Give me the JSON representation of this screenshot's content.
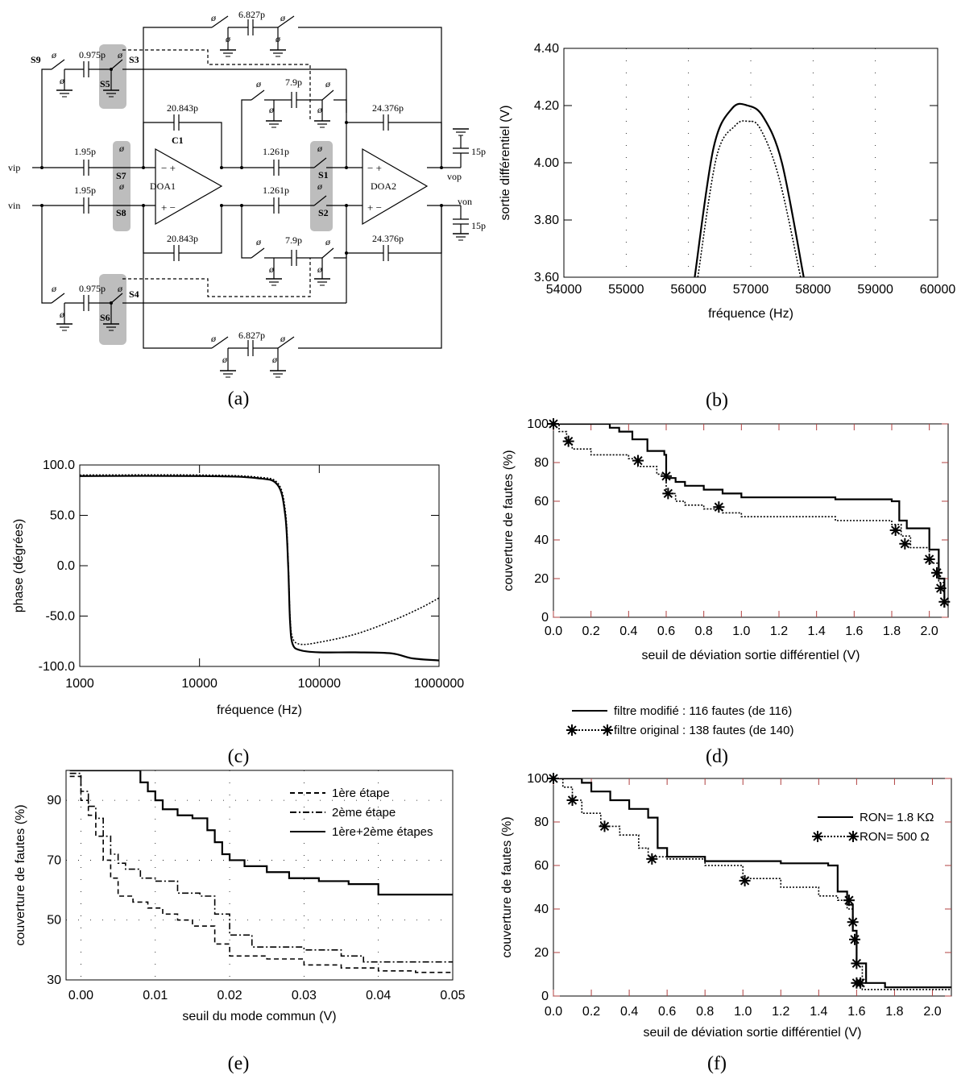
{
  "panel_labels": [
    "(a)",
    "(b)",
    "(c)",
    "(d)",
    "(e)",
    "(f)"
  ],
  "circuit": {
    "amp_labels": [
      "DOA1",
      "DOA2"
    ],
    "switch_labels": [
      "S1",
      "S2",
      "S3",
      "S4",
      "S5",
      "S6",
      "S7",
      "S8",
      "S9"
    ],
    "cap_labels": {
      "top_outer": "6.827p",
      "bottom_outer": "6.827p",
      "s9_cap": "0.975p",
      "s6_cap": "0.975p",
      "fb_top": "20.843p",
      "fb_bottom": "20.843p",
      "in_top": "1.95p",
      "in_bottom": "1.95p",
      "mid_top": "1.261p",
      "mid_bottom": "1.261p",
      "sw_top": "7.9p",
      "sw_bottom": "7.9p",
      "fb2_top": "24.376p",
      "fb2_bottom": "24.376p",
      "load_top": "15p",
      "load_bottom": "15p",
      "c1": "C1"
    },
    "node_labels": {
      "vip": "vip",
      "vin": "vin",
      "vop": "vop",
      "von": "von"
    },
    "switch_symbol": "ø"
  },
  "chart_data": [
    {
      "id": "b",
      "type": "line",
      "xlabel": "fréquence (Hz)",
      "ylabel": "sortie différentiel (V)",
      "xlim": [
        54000,
        60000
      ],
      "ylim": [
        3.6,
        4.4
      ],
      "xticks": [
        54000,
        55000,
        56000,
        57000,
        58000,
        59000,
        60000
      ],
      "yticks": [
        3.6,
        3.8,
        4.0,
        4.2,
        4.4
      ],
      "ytick_labels": [
        "3.60",
        "3.80",
        "4.00",
        "4.20",
        "4.40"
      ],
      "series": [
        {
          "style": "solid",
          "x": [
            56100,
            56400,
            56700,
            56950,
            57200,
            57500,
            57850
          ],
          "y": [
            3.6,
            4.05,
            4.19,
            4.2,
            4.16,
            4.0,
            3.6
          ]
        },
        {
          "style": "dotted",
          "x": [
            56150,
            56450,
            56750,
            56950,
            57150,
            57450,
            57800
          ],
          "y": [
            3.6,
            4.02,
            4.13,
            4.145,
            4.12,
            3.95,
            3.6
          ]
        }
      ]
    },
    {
      "id": "c",
      "type": "line",
      "xscale": "log",
      "xlabel": "fréquence (Hz)",
      "ylabel": "phase (dégrées)",
      "xlim": [
        1000,
        1000000
      ],
      "ylim": [
        -100,
        100
      ],
      "xticks": [
        1000,
        10000,
        100000,
        1000000
      ],
      "xtick_labels": [
        "1000",
        "10000",
        "100000",
        "1000000"
      ],
      "yticks": [
        -100,
        -50,
        0,
        50,
        100
      ],
      "ytick_labels": [
        "-100.0",
        "-50.0",
        "0.0",
        "50.0",
        "100.0"
      ],
      "series": [
        {
          "style": "solid",
          "x": [
            1000,
            10000,
            30000,
            45000,
            52000,
            55000,
            57000,
            60000,
            70000,
            100000,
            200000,
            400000,
            600000,
            1000000
          ],
          "y": [
            89,
            89,
            87,
            80,
            50,
            0,
            -55,
            -78,
            -84,
            -86,
            -86,
            -87,
            -92,
            -94
          ]
        },
        {
          "style": "dotted",
          "x": [
            1000,
            10000,
            30000,
            45000,
            52000,
            55000,
            57000,
            60000,
            70000,
            100000,
            200000,
            400000,
            700000,
            1000000
          ],
          "y": [
            90,
            90,
            88,
            82,
            55,
            5,
            -50,
            -72,
            -78,
            -76,
            -68,
            -55,
            -42,
            -32
          ]
        }
      ]
    },
    {
      "id": "d",
      "type": "line",
      "xlabel": "seuil de déviation sortie différentiel (V)",
      "ylabel": "couverture de fautes (%)",
      "xlim": [
        0,
        2.1
      ],
      "ylim": [
        0,
        100
      ],
      "xticks": [
        0,
        0.2,
        0.4,
        0.6,
        0.8,
        1.0,
        1.2,
        1.4,
        1.6,
        1.8,
        2.0
      ],
      "xtick_labels": [
        "0.0",
        "0.2",
        "0.4",
        "0.6",
        "0.8",
        "1.0",
        "1.2",
        "1.4",
        "1.6",
        "1.8",
        "2.0"
      ],
      "yticks": [
        0,
        20,
        40,
        60,
        80,
        100
      ],
      "legend": [
        {
          "label": "filtre modifié : 116 fautes (de 116)",
          "style": "solid"
        },
        {
          "label": "filtre original : 138 fautes (de 140)",
          "style": "dotted-star"
        }
      ],
      "series": [
        {
          "name": "filtre modifié : 116 fautes (de 116)",
          "style": "solid",
          "step": true,
          "x": [
            0,
            0.15,
            0.3,
            0.35,
            0.42,
            0.5,
            0.59,
            0.6,
            0.65,
            0.7,
            0.8,
            0.9,
            1.0,
            1.2,
            1.5,
            1.8,
            1.84,
            1.88,
            1.95,
            2.0,
            2.05,
            2.08
          ],
          "y": [
            100,
            100,
            98,
            96,
            92,
            86,
            84,
            72,
            70,
            68,
            66,
            64,
            62,
            62,
            61,
            60,
            50,
            46,
            46,
            35,
            20,
            5
          ]
        },
        {
          "name": "filtre original : 138 fautes (de 140)",
          "style": "dotted",
          "step": true,
          "markers": "star",
          "x": [
            0,
            0.03,
            0.07,
            0.1,
            0.2,
            0.4,
            0.45,
            0.55,
            0.6,
            0.65,
            0.7,
            0.8,
            0.9,
            1.0,
            1.2,
            1.5,
            1.8,
            1.85,
            1.9,
            2.0,
            2.05,
            2.08
          ],
          "y": [
            100,
            96,
            90,
            87,
            84,
            82,
            78,
            74,
            64,
            60,
            58,
            56,
            54,
            52,
            52,
            50,
            48,
            42,
            36,
            28,
            18,
            8
          ],
          "marker_x": [
            0,
            0.08,
            0.45,
            0.6,
            0.61,
            0.88,
            1.82,
            1.87,
            2.0,
            2.04,
            2.06,
            2.08
          ],
          "marker_y": [
            100,
            91,
            81,
            73,
            64,
            57,
            45,
            38,
            30,
            23,
            15,
            8
          ]
        }
      ]
    },
    {
      "id": "e",
      "type": "line",
      "xlabel": "seuil du mode commun (V)",
      "ylabel": "couverture de fautes (%)",
      "xlim": [
        -0.002,
        0.05
      ],
      "ylim": [
        30,
        100
      ],
      "xticks": [
        0,
        0.01,
        0.02,
        0.03,
        0.04,
        0.05
      ],
      "xtick_labels": [
        "0.00",
        "0.01",
        "0.02",
        "0.03",
        "0.04",
        "0.05"
      ],
      "yticks": [
        30,
        50,
        70,
        90
      ],
      "legend": [
        {
          "label": "1ère étape",
          "style": "dashed"
        },
        {
          "label": "2ème étape",
          "style": "dashdot"
        },
        {
          "label": "1ère+2ème étapes",
          "style": "solid"
        }
      ],
      "series": [
        {
          "name": "1ère étape",
          "style": "dashed",
          "step": true,
          "x": [
            -0.0015,
            0,
            0.001,
            0.002,
            0.003,
            0.004,
            0.005,
            0.007,
            0.009,
            0.011,
            0.013,
            0.015,
            0.018,
            0.02,
            0.025,
            0.03,
            0.035,
            0.04,
            0.045,
            0.05
          ],
          "y": [
            98,
            90,
            85,
            78,
            70,
            64,
            58,
            56,
            54,
            52,
            50,
            48,
            42,
            38,
            37,
            35,
            34,
            33,
            32.5,
            32.5
          ]
        },
        {
          "name": "2ème étape",
          "style": "dashdot",
          "step": true,
          "x": [
            -0.0015,
            0,
            0.001,
            0.002,
            0.003,
            0.004,
            0.005,
            0.006,
            0.008,
            0.01,
            0.013,
            0.016,
            0.018,
            0.02,
            0.023,
            0.03,
            0.035,
            0.038,
            0.05
          ],
          "y": [
            99,
            93,
            88,
            84,
            78,
            72,
            69,
            67,
            64,
            63,
            59,
            58,
            52,
            45,
            41,
            40,
            38,
            36,
            36
          ]
        },
        {
          "name": "1ère+2ème étapes",
          "style": "solid",
          "step": true,
          "x": [
            -0.0015,
            0.007,
            0.008,
            0.009,
            0.01,
            0.011,
            0.013,
            0.015,
            0.017,
            0.018,
            0.019,
            0.02,
            0.022,
            0.025,
            0.028,
            0.032,
            0.036,
            0.04,
            0.05
          ],
          "y": [
            100,
            100,
            96,
            93,
            90,
            87,
            85,
            84,
            80,
            76,
            72,
            70,
            68,
            66,
            64,
            63,
            62,
            58.5,
            58.5
          ]
        }
      ]
    },
    {
      "id": "f",
      "type": "line",
      "xlabel": "seuil de déviation sortie différentiel (V)",
      "ylabel": "couverture de fautes (%)",
      "xlim": [
        0,
        2.1
      ],
      "ylim": [
        0,
        100
      ],
      "xticks": [
        0,
        0.2,
        0.4,
        0.6,
        0.8,
        1.0,
        1.2,
        1.4,
        1.6,
        1.8,
        2.0
      ],
      "xtick_labels": [
        "0.0",
        "0.2",
        "0.4",
        "0.6",
        "0.8",
        "1.0",
        "1.2",
        "1.4",
        "1.6",
        "1.8",
        "2.0"
      ],
      "yticks": [
        0,
        20,
        40,
        60,
        80,
        100
      ],
      "legend": [
        {
          "label": "RON= 1.8 KΩ",
          "style": "solid"
        },
        {
          "label": "RON= 500 Ω",
          "style": "dotted-star"
        }
      ],
      "series": [
        {
          "name": "RON= 1.8 KΩ",
          "style": "solid",
          "step": true,
          "x": [
            0,
            0.15,
            0.2,
            0.3,
            0.4,
            0.5,
            0.55,
            0.6,
            0.8,
            1.0,
            1.2,
            1.45,
            1.5,
            1.55,
            1.58,
            1.6,
            1.65,
            1.75,
            2.1
          ],
          "y": [
            100,
            98,
            94,
            90,
            86,
            82,
            68,
            64,
            62,
            62,
            61,
            60,
            48,
            42,
            30,
            15,
            6,
            4,
            4
          ]
        },
        {
          "name": "RON= 500 Ω",
          "style": "dotted",
          "step": true,
          "markers": "star",
          "x": [
            0,
            0.05,
            0.1,
            0.15,
            0.25,
            0.35,
            0.45,
            0.5,
            0.6,
            0.8,
            1.0,
            1.2,
            1.4,
            1.5,
            1.55,
            1.58,
            1.6,
            1.63,
            2.1
          ],
          "y": [
            100,
            96,
            90,
            84,
            78,
            74,
            68,
            64,
            63,
            60,
            54,
            50,
            46,
            44,
            40,
            30,
            15,
            3,
            3
          ],
          "marker_x": [
            0,
            0.1,
            0.27,
            0.52,
            1.01,
            1.56,
            1.58,
            1.59,
            1.6,
            1.6,
            1.62
          ],
          "marker_y": [
            100,
            90,
            78,
            63,
            53,
            44,
            34,
            26,
            15,
            6,
            6
          ]
        }
      ]
    }
  ]
}
